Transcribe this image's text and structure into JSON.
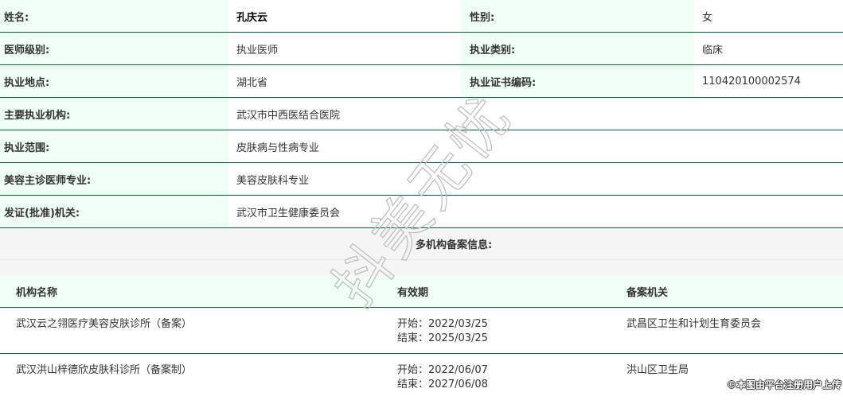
{
  "info": [
    {
      "l1": "姓名:",
      "v1": "孔庆云",
      "l2": "性别:",
      "v2": "女"
    },
    {
      "l1": "医师级别:",
      "v1": "执业医师",
      "l2": "执业类别:",
      "v2": "临床"
    },
    {
      "l1": "执业地点:",
      "v1": "湖北省",
      "l2": "执业证书编码:",
      "v2": "110420100002574"
    }
  ],
  "wide": [
    {
      "l": "主要执业机构:",
      "v": "武汉市中西医结合医院"
    },
    {
      "l": "执业范围:",
      "v": "皮肤病与性病专业"
    },
    {
      "l": "美容主诊医师专业:",
      "v": "美容皮肤科专业"
    },
    {
      "l": "发证(批准)机关:",
      "v": "武汉市卫生健康委员会"
    }
  ],
  "section_title": "多机构备案信息:",
  "table": {
    "headers": [
      "机构名称",
      "有效期",
      "备案机关"
    ],
    "rows": [
      {
        "org": "武汉云之翎医疗美容皮肤诊所（备案）",
        "start": "开始：2022/03/25",
        "end": "结束：2025/03/25",
        "authority": "武昌区卫生和计划生育委员会"
      },
      {
        "org": "武汉洪山梓德欣皮肤科诊所（备案制）",
        "start": "开始：2022/06/07",
        "end": "结束：2027/06/08",
        "authority": "洪山区卫生局"
      }
    ]
  },
  "watermark": "抖美无忧",
  "credit": "©本图由平台注册用户上传",
  "colors": {
    "border": "#0b5d35",
    "label_bg": "#f0fff6",
    "section_bg": "#f5f5f5"
  }
}
